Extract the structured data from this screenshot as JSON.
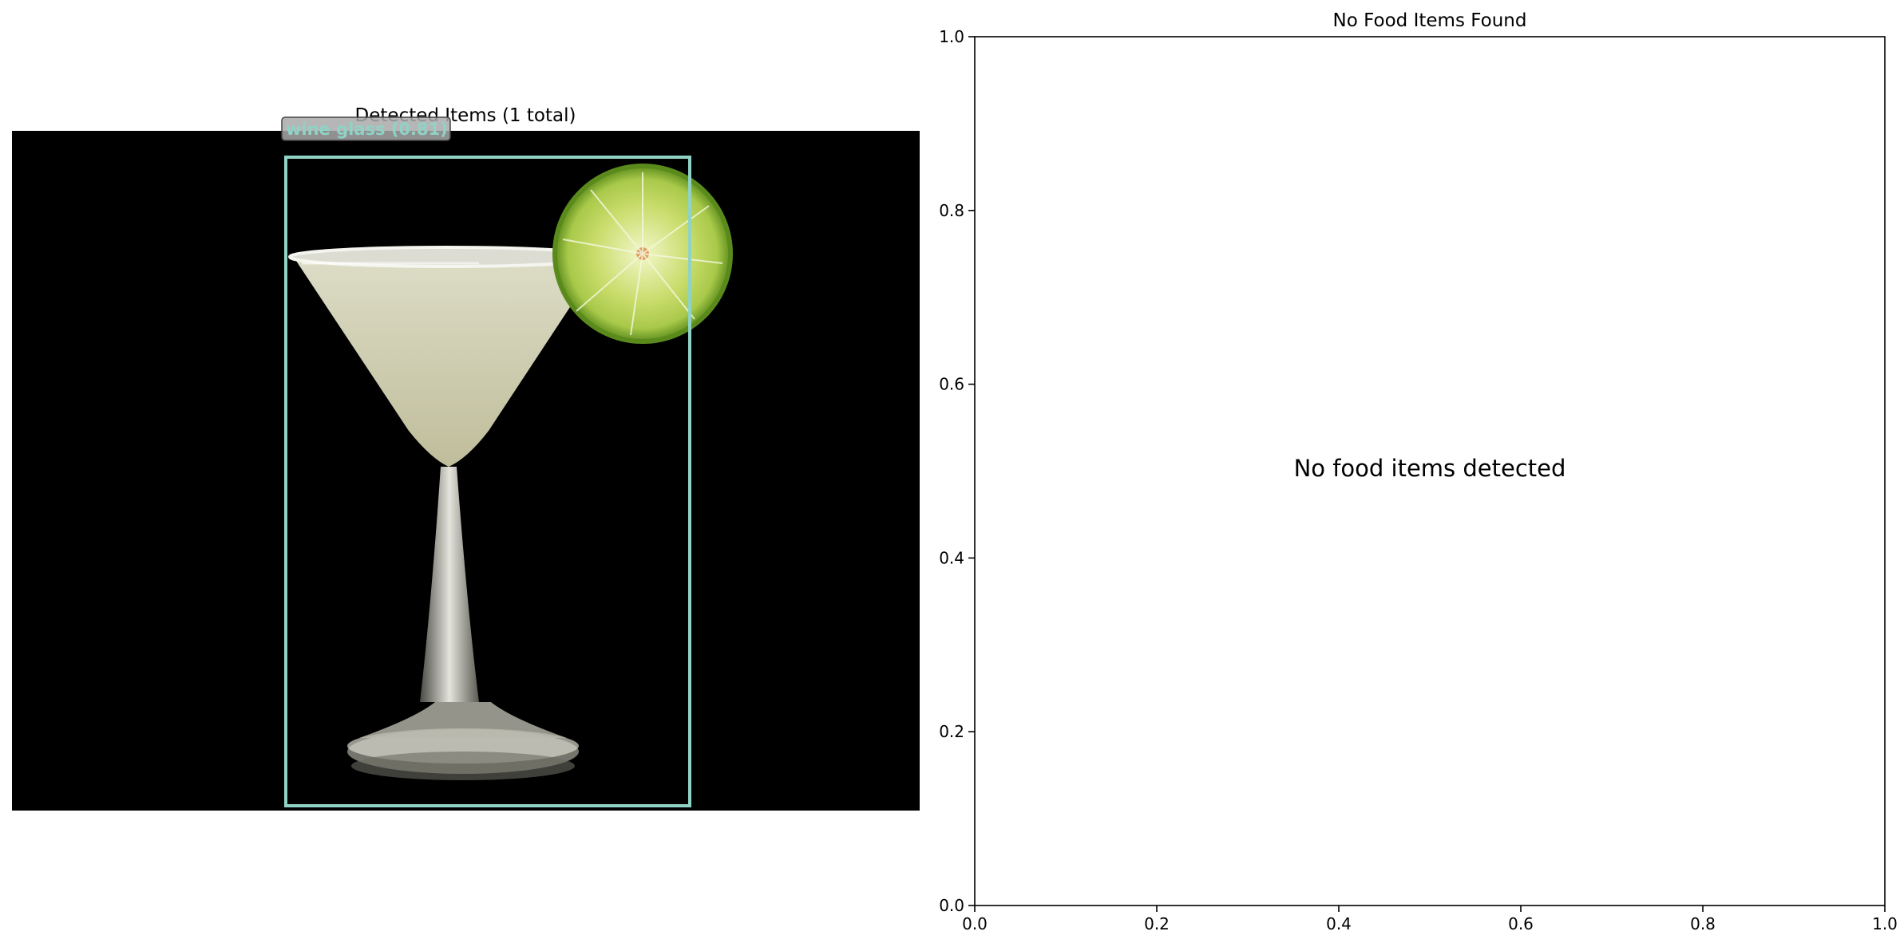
{
  "figure": {
    "left_panel": {
      "title": "Detected Items (1 total)",
      "detections": [
        {
          "label": "wine glass (0.81)",
          "color": "#8fd3c6"
        }
      ]
    },
    "right_panel": {
      "title": "No Food Items Found",
      "message": "No food items detected"
    }
  },
  "chart_data": {
    "type": "scatter",
    "title": "No Food Items Found",
    "xlabel": "",
    "ylabel": "",
    "xlim": [
      0.0,
      1.0
    ],
    "ylim": [
      0.0,
      1.0
    ],
    "x_ticks": [
      "0.0",
      "0.2",
      "0.4",
      "0.6",
      "0.8",
      "1.0"
    ],
    "y_ticks": [
      "0.0",
      "0.2",
      "0.4",
      "0.6",
      "0.8",
      "1.0"
    ],
    "series": [],
    "annotations": [
      "No food items detected"
    ],
    "grid": false
  }
}
